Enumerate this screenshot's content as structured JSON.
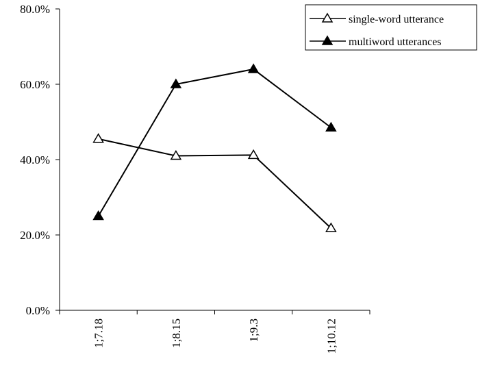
{
  "chart_data": {
    "type": "line",
    "categories": [
      "1;7.18",
      "1;8.15",
      "1;9.3",
      "1;10.12"
    ],
    "yticks": [
      "0.0%",
      "20.0%",
      "40.0%",
      "60.0%",
      "80.0%"
    ],
    "ylim": [
      0,
      80
    ],
    "grid": false,
    "legend_position": "top-right",
    "series": [
      {
        "name": "single-word utterance",
        "marker": "open-triangle",
        "values": [
          45.5,
          41.0,
          41.2,
          21.8
        ]
      },
      {
        "name": "multiword utterances",
        "marker": "filled-triangle",
        "values": [
          25.0,
          60.0,
          64.0,
          48.5
        ]
      }
    ]
  }
}
